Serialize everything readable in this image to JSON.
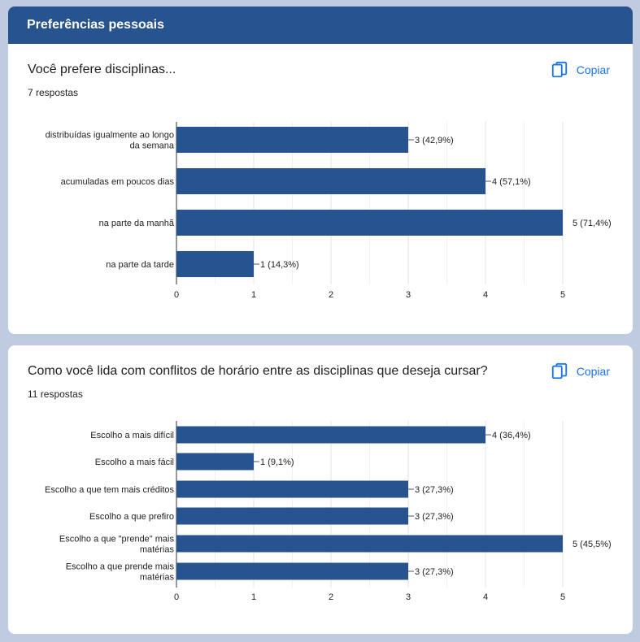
{
  "section": {
    "title": "Preferências pessoais"
  },
  "copy_label": "Copiar",
  "questions": [
    {
      "title": "Você prefere disciplinas...",
      "responses": "7 respostas",
      "copy_label": "Copiar"
    },
    {
      "title": "Como você lida com conflitos de horário entre as disciplinas que deseja cursar?",
      "responses": "11 respostas",
      "copy_label": "Copiar"
    }
  ],
  "chart_data": [
    {
      "type": "bar",
      "orientation": "horizontal",
      "categories": [
        "distribuídas igualmente ao longo da semana",
        "acumuladas em poucos dias",
        "na parte da manhã",
        "na parte da tarde"
      ],
      "category_lines": [
        [
          "distribuídas igualmente ao longo",
          "da semana"
        ],
        [
          "acumuladas em poucos dias"
        ],
        [
          "na parte da manhã"
        ],
        [
          "na parte da tarde"
        ]
      ],
      "values": [
        3,
        4,
        5,
        1
      ],
      "data_labels": [
        "3 (42,9%)",
        "4 (57,1%)",
        "5 (71,4%)",
        "1 (14,3%)"
      ],
      "xlim": [
        0,
        5
      ],
      "ticks": [
        0,
        1,
        2,
        3,
        4,
        5
      ],
      "bar_color": "#27538f",
      "grid": true
    },
    {
      "type": "bar",
      "orientation": "horizontal",
      "categories": [
        "Escolho a mais difícil",
        "Escolho a mais fácil",
        "Escolho a que tem mais créditos",
        "Escolho a que prefiro",
        "Escolho a que \"prende\" mais matérias",
        "Escolho a que prende mais matérias"
      ],
      "category_lines": [
        [
          "Escolho a mais difícil"
        ],
        [
          "Escolho a mais fácil"
        ],
        [
          "Escolho a que tem mais créditos"
        ],
        [
          "Escolho a que prefiro"
        ],
        [
          "Escolho a que \"prende\" mais",
          "matérias"
        ],
        [
          "Escolho a que prende mais",
          "matérias"
        ]
      ],
      "values": [
        4,
        1,
        3,
        3,
        5,
        3
      ],
      "data_labels": [
        "4 (36,4%)",
        "1 (9,1%)",
        "3 (27,3%)",
        "3 (27,3%)",
        "5 (45,5%)",
        "3 (27,3%)"
      ],
      "xlim": [
        0,
        5
      ],
      "ticks": [
        0,
        1,
        2,
        3,
        4,
        5
      ],
      "bar_color": "#27538f",
      "grid": true
    }
  ]
}
